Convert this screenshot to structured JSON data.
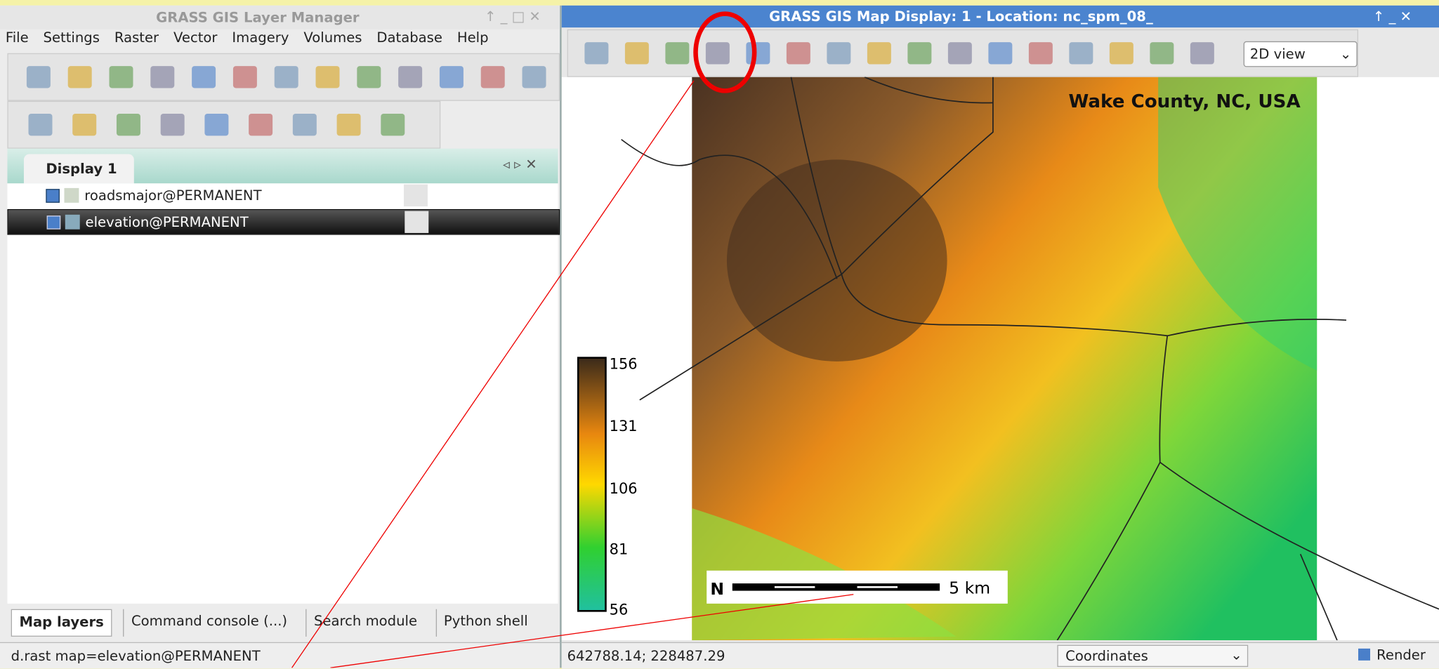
{
  "layer_manager": {
    "title": "GRASS GIS Layer Manager",
    "menu": [
      "File",
      "Settings",
      "Raster",
      "Vector",
      "Imagery",
      "Volumes",
      "Database",
      "Help"
    ],
    "tab": "Display 1",
    "layers": [
      "roadsmajor@PERMANENT",
      "elevation@PERMANENT"
    ],
    "bottom_tabs": [
      "Map layers",
      "Command console (...)",
      "Search module",
      "Python shell"
    ],
    "status": "d.rast map=elevation@PERMANENT"
  },
  "map_display": {
    "title": "GRASS GIS Map Display: 1  - Location: nc_spm_08_",
    "view_mode": "2D view",
    "map_title": "Wake County, NC, USA",
    "legend": [
      156,
      131,
      106,
      81,
      56
    ],
    "scale_bar": "5 km",
    "coordinates": "642788.14; 228487.29",
    "status_mode": "Coordinates",
    "render": "Render"
  }
}
